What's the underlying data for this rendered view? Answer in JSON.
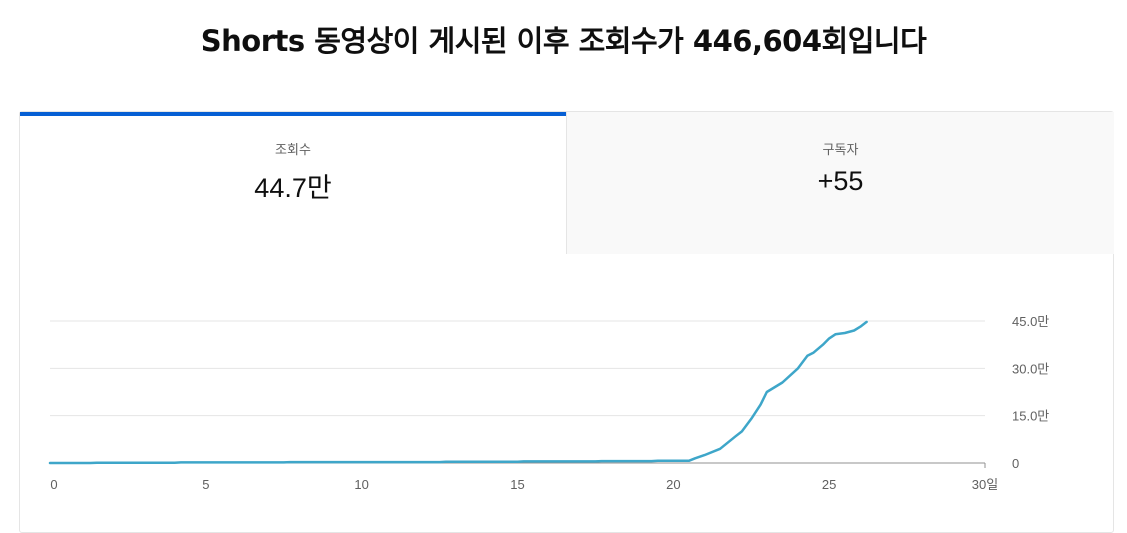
{
  "headline": "Shorts 동영상이 게시된 이후 조회수가 446,604회입니다",
  "tabs": [
    {
      "label": "조회수",
      "value": "44.7만",
      "selected": true
    },
    {
      "label": "구독자",
      "value": "+55",
      "selected": false
    }
  ],
  "colors": {
    "accent": "#065fd4",
    "line": "#3ea6c9"
  },
  "chart_data": {
    "type": "line",
    "series": [
      {
        "name": "",
        "x": [
          0,
          1.3,
          1.5,
          4.0,
          4.2,
          7.5,
          7.7,
          12.5,
          12.7,
          15.0,
          15.2,
          17.5,
          17.7,
          19.3,
          19.5,
          20.5,
          20.7,
          21.0,
          21.5,
          22.0,
          22.2,
          22.5,
          22.8,
          23.0,
          23.5,
          24.0,
          24.3,
          24.5,
          24.8,
          25.0,
          25.2,
          25.5,
          25.8,
          26.0,
          26.2
        ],
        "y": [
          0,
          0,
          1000,
          1000,
          2000,
          2000,
          3000,
          3000,
          4000,
          4000,
          5000,
          5000,
          6000,
          6000,
          7000,
          7000,
          15000,
          25000,
          45000,
          85000,
          100000,
          140000,
          185000,
          225000,
          255000,
          300000,
          340000,
          350000,
          375000,
          395000,
          408000,
          412000,
          420000,
          432000,
          447000
        ]
      }
    ],
    "x_ticks": [
      "0",
      "5",
      "10",
      "15",
      "20",
      "25",
      "30일"
    ],
    "x_tick_values": [
      0,
      5,
      10,
      15,
      20,
      25,
      30
    ],
    "y_ticks": [
      "0",
      "15.0만",
      "30.0만",
      "45.0만"
    ],
    "y_tick_values": [
      0,
      150000,
      300000,
      450000
    ],
    "xlim": [
      0,
      30
    ],
    "ylim": [
      0,
      450000
    ],
    "grid": true
  }
}
